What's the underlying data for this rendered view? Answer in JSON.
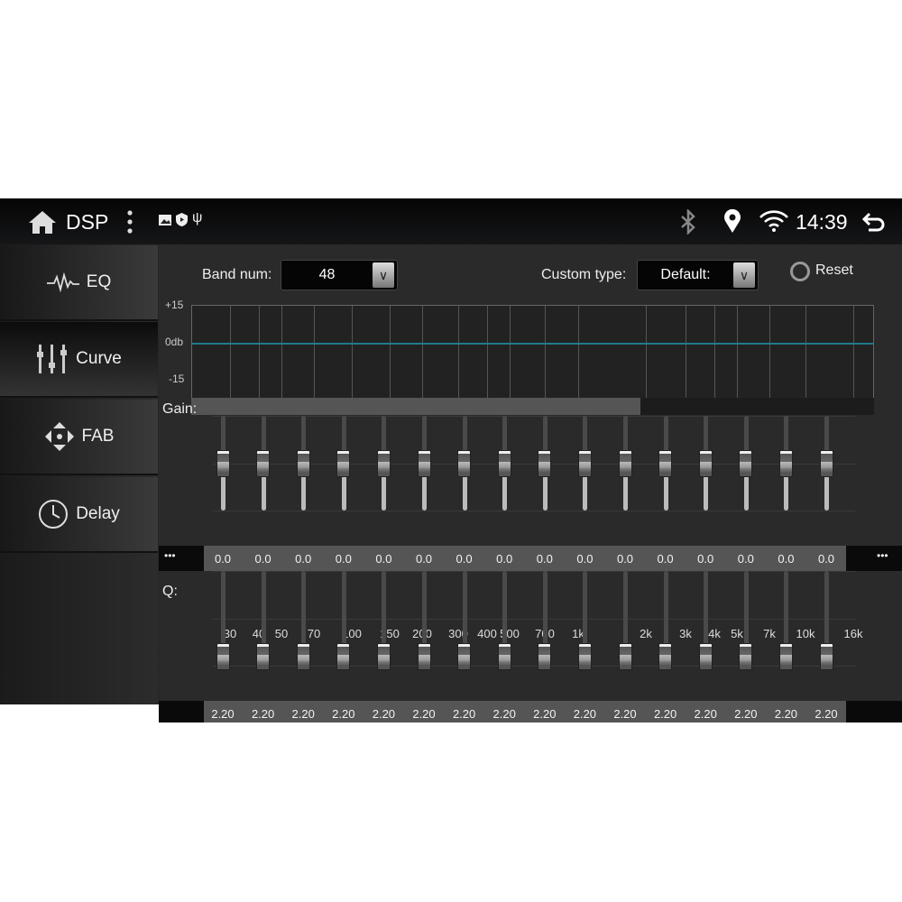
{
  "statusbar": {
    "title": "DSP",
    "time": "14:39",
    "icons": [
      "home-icon",
      "more-vert-icon",
      "image-icon",
      "shield-icon",
      "usb-icon",
      "bluetooth-icon",
      "location-icon",
      "wifi-icon",
      "back-icon"
    ]
  },
  "sidebar": {
    "items": [
      {
        "label": "EQ",
        "icon": "waveform-icon"
      },
      {
        "label": "Curve",
        "icon": "sliders-icon",
        "active": true
      },
      {
        "label": "FAB",
        "icon": "fader-balance-icon"
      },
      {
        "label": "Delay",
        "icon": "clock-icon"
      }
    ]
  },
  "controls": {
    "band_num_label": "Band num:",
    "band_num_value": "48",
    "custom_type_label": "Custom type:",
    "custom_type_value": "Default:",
    "reset_label": "Reset"
  },
  "chart": {
    "y_top": "+15",
    "y_mid": "0db",
    "y_bottom": "-15",
    "freq_labels": [
      "30",
      "40",
      "50",
      "70",
      "100",
      "150",
      "200",
      "300",
      "400",
      "500",
      "700",
      "1k",
      "2k",
      "3k",
      "4k",
      "5k",
      "7k",
      "10k",
      "16k"
    ],
    "curve_color": "#1f7a8c"
  },
  "gain": {
    "label": "Gain:",
    "more": "•••",
    "range": [
      -15,
      15
    ],
    "values": [
      "0.0",
      "0.0",
      "0.0",
      "0.0",
      "0.0",
      "0.0",
      "0.0",
      "0.0",
      "0.0",
      "0.0",
      "0.0",
      "0.0",
      "0.0",
      "0.0",
      "0.0",
      "0.0"
    ]
  },
  "q": {
    "label": "Q:",
    "values": [
      "2.20",
      "2.20",
      "2.20",
      "2.20",
      "2.20",
      "2.20",
      "2.20",
      "2.20",
      "2.20",
      "2.20",
      "2.20",
      "2.20",
      "2.20",
      "2.20",
      "2.20",
      "2.20"
    ]
  }
}
